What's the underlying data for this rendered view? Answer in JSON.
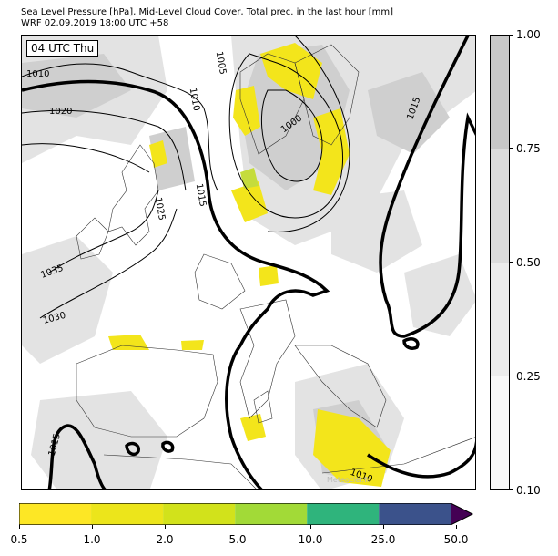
{
  "header": {
    "title_line1": "Sea Level Pressure [hPa], Mid-Level Cloud Cover, Total prec. in the last hour [mm]",
    "title_line2": "WRF 02.09.2019 18:00 UTC +58"
  },
  "map": {
    "time_label": "04 UTC Thu",
    "watermark": "Meteociel.fr",
    "isobar_labels": [
      "1010",
      "1020",
      "1010",
      "1005",
      "1000",
      "1015",
      "1015",
      "1035",
      "1030",
      "1015",
      "1010",
      "1025"
    ],
    "colors": {
      "coast": "#222222",
      "isobar": "#000000",
      "cloud_light": "#e8e8e8",
      "cloud_mid": "#d2d2d2",
      "precip": "#f5e519",
      "precip_green": "#c8dc3c"
    }
  },
  "cloud_colorbar": {
    "ticks": [
      "0.10",
      "0.25",
      "0.50",
      "0.75",
      "1.00"
    ],
    "segments": [
      "#f8f8f8",
      "#ececec",
      "#dcdcdc",
      "#c8c8c8"
    ]
  },
  "precip_colorbar": {
    "ticks": [
      "0.5",
      "1.0",
      "2.0",
      "5.0",
      "10.0",
      "25.0",
      "50.0"
    ],
    "segments": [
      "#fde725",
      "#ece51b",
      "#d2e21b",
      "#a2da37",
      "#2fb47c",
      "#3b528b"
    ],
    "extend_color": "#440154"
  }
}
